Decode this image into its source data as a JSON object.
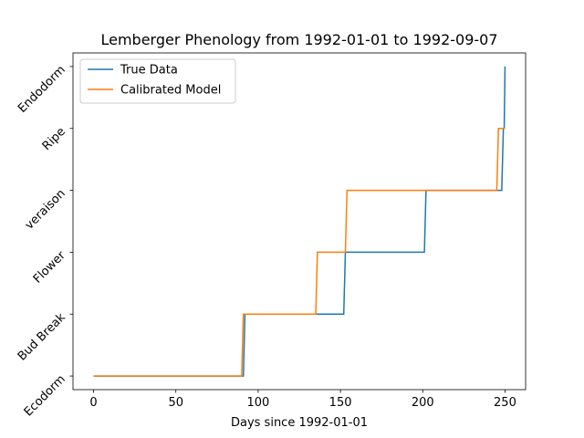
{
  "chart_data": {
    "type": "line",
    "title": "Lemberger Phenology from 1992-01-01 to 1992-09-07",
    "xlabel": "Days since 1992-01-01",
    "ylabel": "",
    "xlim": [
      -12.5,
      262.5
    ],
    "ylim": [
      -0.22,
      5.22
    ],
    "x_ticks": [
      0,
      50,
      100,
      150,
      200,
      250
    ],
    "y_ticks": [
      0,
      1,
      2,
      3,
      4,
      5
    ],
    "y_tick_labels": [
      "Ecodorm",
      "Bud Break",
      "Flower",
      "veraison",
      "Ripe",
      "Endodorm"
    ],
    "legend": {
      "position": "top-left"
    },
    "series": [
      {
        "name": "True Data",
        "color": "#1f77b4",
        "x": [
          0,
          91,
          92,
          152,
          153,
          201,
          202,
          248,
          249,
          249.5,
          250
        ],
        "y": [
          0,
          0,
          1,
          1,
          2,
          2,
          3,
          3,
          4,
          4,
          5
        ]
      },
      {
        "name": "Calibrated Model",
        "color": "#ff7f0e",
        "x": [
          0,
          90,
          91,
          135,
          136,
          153,
          154,
          245,
          246,
          250
        ],
        "y": [
          0,
          0,
          1,
          1,
          2,
          2,
          3,
          3,
          4,
          4
        ]
      }
    ]
  }
}
